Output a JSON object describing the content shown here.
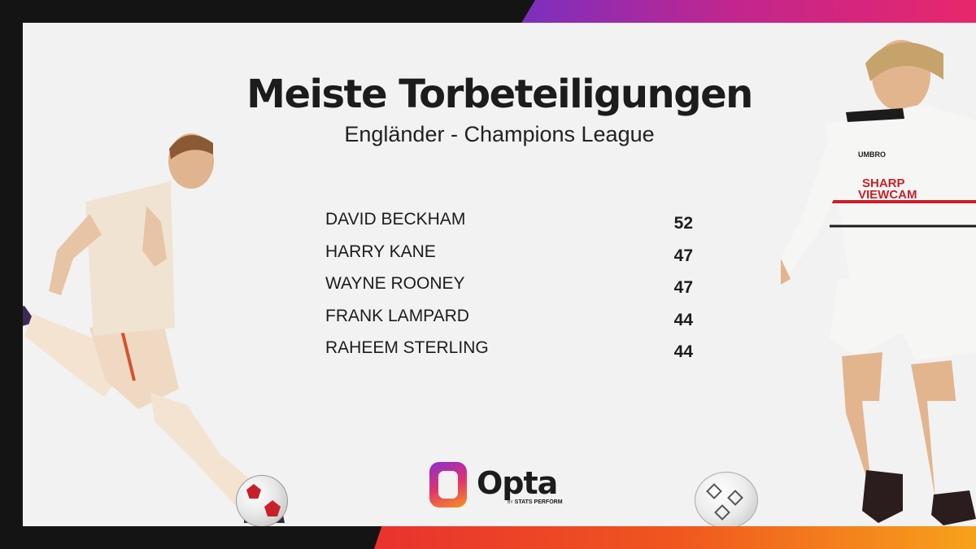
{
  "header": {
    "title": "Meiste Torbeteiligungen",
    "subtitle": "Engländer - Champions League"
  },
  "ranking": [
    {
      "name": "DAVID BECKHAM",
      "value": "52"
    },
    {
      "name": "HARRY KANE",
      "value": "47"
    },
    {
      "name": "WAYNE ROONEY",
      "value": "47"
    },
    {
      "name": "FRANK LAMPARD",
      "value": "44"
    },
    {
      "name": "RAHEEM STERLING",
      "value": "44"
    }
  ],
  "jerseys": {
    "right_sponsor_line1": "SHARP",
    "right_sponsor_line2": "VIEWCAM",
    "right_brand": "UMBRO"
  },
  "logo": {
    "word": "Opta",
    "by": "BY",
    "tagline": "STATS PERFORM"
  },
  "colors": {
    "background": "#141414",
    "card": "#f2f2f2",
    "text": "#1c1c1c",
    "accent_purple": "#7b2fbf",
    "accent_pink": "#e8276b",
    "accent_orange": "#f7a21b"
  }
}
